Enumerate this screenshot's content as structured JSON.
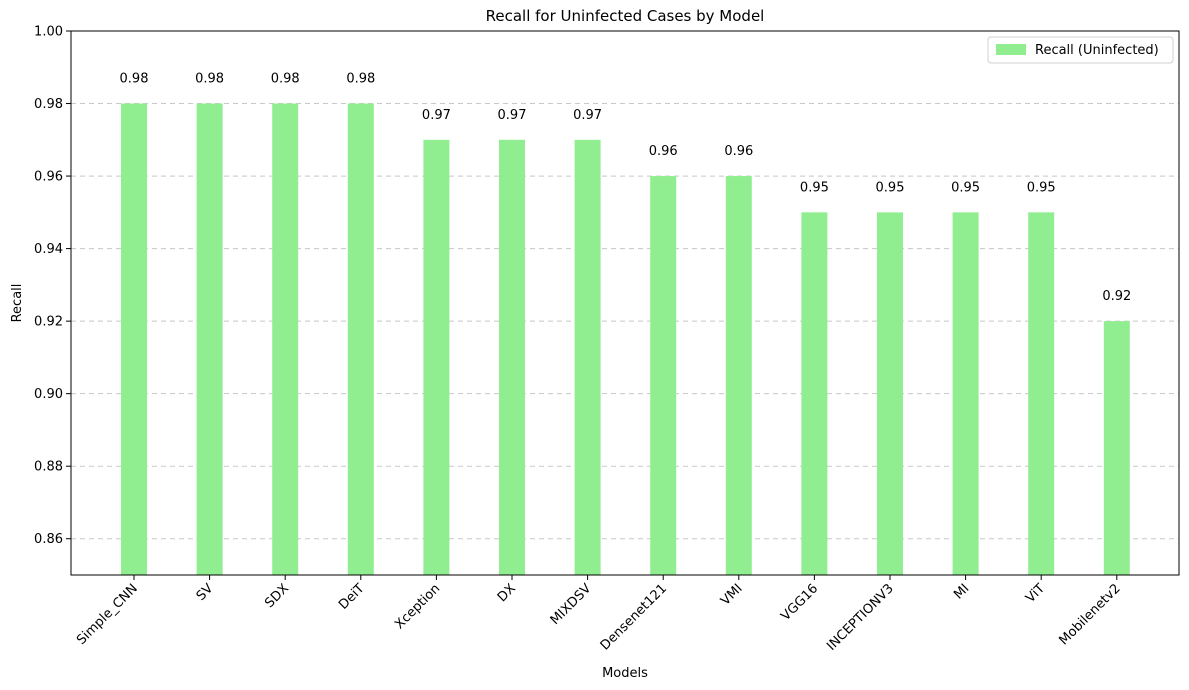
{
  "chart_data": {
    "type": "bar",
    "title": "Recall for  Uninfected Cases by Model",
    "xlabel": "Models",
    "ylabel": "Recall",
    "ylim": [
      0.85,
      1.0
    ],
    "y_ticks": [
      0.86,
      0.88,
      0.9,
      0.92,
      0.94,
      0.96,
      0.98,
      1.0
    ],
    "y_tick_labels": [
      "0.86",
      "0.88",
      "0.90",
      "0.92",
      "0.94",
      "0.96",
      "0.98",
      "1.00"
    ],
    "grid": "horizontal dashed",
    "legend_position": "top-right",
    "categories": [
      "Simple_CNN",
      "SV",
      "SDX",
      "DeiT",
      "Xception",
      "DX",
      "MIXDSV",
      "Densenet121",
      "VMI",
      "VGG16",
      "INCEPTIONV3",
      "MI",
      "ViT",
      "Mobilenetv2"
    ],
    "series": [
      {
        "name": "Recall (Uninfected)",
        "color": "#90ee90",
        "values": [
          0.98,
          0.98,
          0.98,
          0.98,
          0.97,
          0.97,
          0.97,
          0.96,
          0.96,
          0.95,
          0.95,
          0.95,
          0.95,
          0.92
        ],
        "value_labels": [
          "0.98",
          "0.98",
          "0.98",
          "0.98",
          "0.97",
          "0.97",
          "0.97",
          "0.96",
          "0.96",
          "0.95",
          "0.95",
          "0.95",
          "0.95",
          "0.92"
        ]
      }
    ]
  }
}
